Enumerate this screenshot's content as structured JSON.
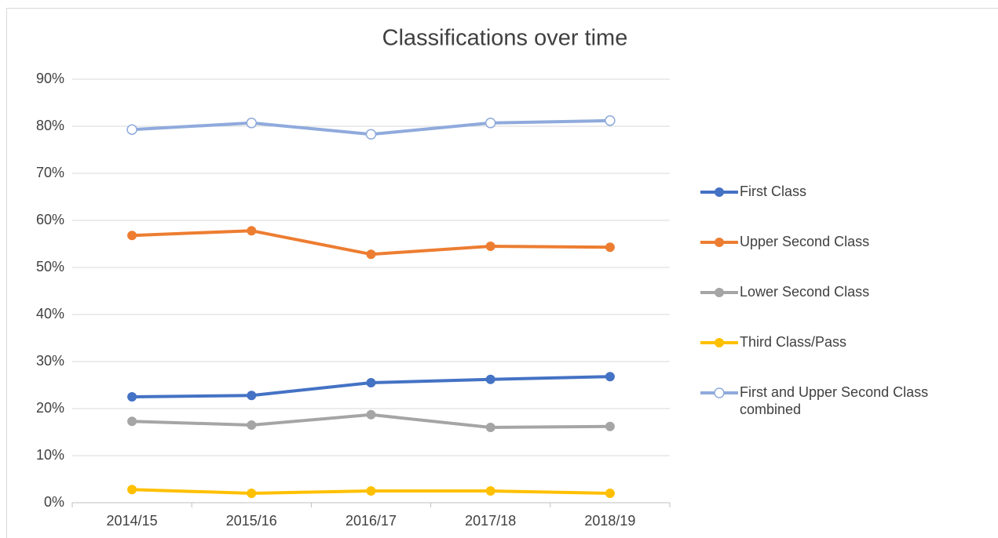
{
  "chart_data": {
    "type": "line",
    "title": "Classifications over time",
    "categories": [
      "2014/15",
      "2015/16",
      "2016/17",
      "2017/18",
      "2018/19"
    ],
    "series": [
      {
        "name": "First Class",
        "color": "#4472c4",
        "marker": "filled",
        "values": [
          22.5,
          22.8,
          25.5,
          26.2,
          26.8
        ]
      },
      {
        "name": "Upper Second Class",
        "color": "#ed7d31",
        "marker": "filled",
        "values": [
          56.8,
          57.8,
          52.8,
          54.5,
          54.3
        ]
      },
      {
        "name": "Lower Second Class",
        "color": "#a5a5a5",
        "marker": "filled",
        "values": [
          17.3,
          16.5,
          18.7,
          16.0,
          16.2
        ]
      },
      {
        "name": "Third Class/Pass",
        "color": "#ffc000",
        "marker": "filled",
        "values": [
          2.8,
          2.0,
          2.5,
          2.5,
          2.0
        ]
      },
      {
        "name": "First and Upper Second Class combined",
        "color": "#8faadc",
        "marker": "hollow",
        "values": [
          79.3,
          80.7,
          78.3,
          80.7,
          81.2
        ]
      }
    ],
    "ylim": [
      0,
      90
    ],
    "yticks": [
      {
        "value": 0,
        "label": "0%"
      },
      {
        "value": 10,
        "label": "10%"
      },
      {
        "value": 20,
        "label": "20%"
      },
      {
        "value": 30,
        "label": "30%"
      },
      {
        "value": 40,
        "label": "40%"
      },
      {
        "value": 50,
        "label": "50%"
      },
      {
        "value": 60,
        "label": "60%"
      },
      {
        "value": 70,
        "label": "70%"
      },
      {
        "value": 80,
        "label": "80%"
      },
      {
        "value": 90,
        "label": "90%"
      }
    ],
    "grid": true,
    "legend": "right"
  }
}
